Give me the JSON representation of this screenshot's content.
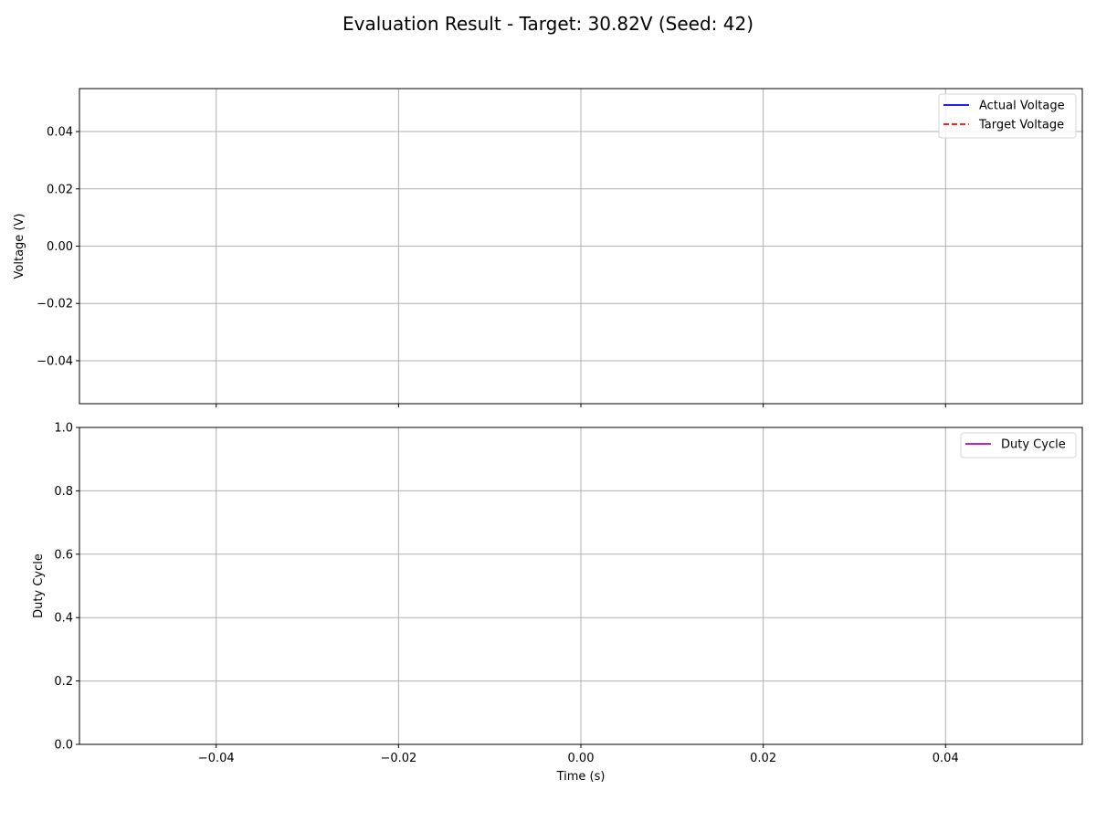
{
  "title": "Evaluation Result - Target: 30.82V (Seed: 42)",
  "chart_data": [
    {
      "type": "line",
      "title": "",
      "xlabel": "",
      "ylabel": "Voltage (V)",
      "xlim": [
        -0.055,
        0.055
      ],
      "ylim": [
        -0.055,
        0.055
      ],
      "xticks": [
        -0.04,
        -0.02,
        0.0,
        0.02,
        0.04
      ],
      "yticks": [
        -0.04,
        -0.02,
        0.0,
        0.02,
        0.04
      ],
      "xtick_labels": [
        "",
        "",
        "",
        "",
        ""
      ],
      "ytick_labels": [
        "−0.04",
        "−0.02",
        "0.00",
        "0.02",
        "0.04"
      ],
      "grid": true,
      "legend_position": "top-right",
      "series": [
        {
          "name": "Actual Voltage",
          "color": "#0000ff",
          "style": "solid",
          "x": [],
          "y": []
        },
        {
          "name": "Target Voltage",
          "color": "#ff0000",
          "style": "dashed",
          "x": [],
          "y": []
        }
      ]
    },
    {
      "type": "line",
      "title": "",
      "xlabel": "Time (s)",
      "ylabel": "Duty Cycle",
      "xlim": [
        -0.055,
        0.055
      ],
      "ylim": [
        0.0,
        1.0
      ],
      "xticks": [
        -0.04,
        -0.02,
        0.0,
        0.02,
        0.04
      ],
      "yticks": [
        0.0,
        0.2,
        0.4,
        0.6,
        0.8,
        1.0
      ],
      "xtick_labels": [
        "−0.04",
        "−0.02",
        "0.00",
        "0.02",
        "0.04"
      ],
      "ytick_labels": [
        "0.0",
        "0.2",
        "0.4",
        "0.6",
        "0.8",
        "1.0"
      ],
      "grid": true,
      "legend_position": "top-right",
      "series": [
        {
          "name": "Duty Cycle",
          "color": "#bf00bf",
          "style": "solid",
          "x": [],
          "y": []
        }
      ]
    }
  ]
}
